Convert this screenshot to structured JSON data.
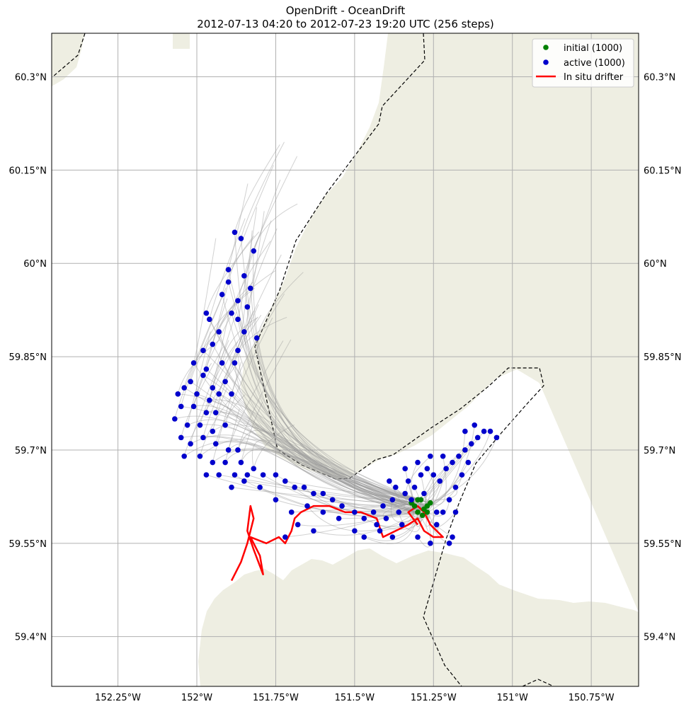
{
  "chart_data": {
    "type": "scatter",
    "title": "OpenDrift - OceanDrift",
    "subtitle": "2012-07-13 04:20 to 2012-07-23 19:20 UTC (256 steps)",
    "xlabel": "",
    "ylabel": "",
    "xlim": [
      -152.46,
      -150.6
    ],
    "ylim": [
      59.32,
      60.37
    ],
    "x_ticks": [
      -152.25,
      -152.0,
      -151.75,
      -151.5,
      -151.25,
      -151.0,
      -150.75
    ],
    "x_tick_labels": [
      "152.25°W",
      "152°W",
      "151.75°W",
      "151.5°W",
      "151.25°W",
      "151°W",
      "150.75°W"
    ],
    "y_ticks": [
      59.4,
      59.55,
      59.7,
      59.85,
      60.0,
      60.15,
      60.3
    ],
    "y_tick_labels": [
      "59.4°N",
      "59.55°N",
      "59.7°N",
      "59.85°N",
      "60°N",
      "60.15°N",
      "60.3°N"
    ],
    "grid": true,
    "legend_position": "top-right",
    "legend": [
      {
        "label": "initial (1000)",
        "color": "#008000",
        "marker": "dot"
      },
      {
        "label": "active (1000)",
        "color": "#0000cc",
        "marker": "dot"
      },
      {
        "label": "In situ drifter",
        "color": "#ff0000",
        "marker": "line"
      }
    ],
    "colors": {
      "land": "#eeeee2",
      "trajectory": "#9a9a9a",
      "initial": "#008000",
      "active": "#0000cc",
      "drifter": "#ff0000",
      "grid": "#b0b0b0"
    },
    "series": [
      {
        "name": "initial (1000)",
        "points": [
          [
            -151.31,
            59.61
          ],
          [
            -151.29,
            59.62
          ],
          [
            -151.27,
            59.61
          ],
          [
            -151.3,
            59.6
          ],
          [
            -151.28,
            59.605
          ],
          [
            -151.26,
            59.615
          ],
          [
            -151.32,
            59.615
          ],
          [
            -151.285,
            59.595
          ],
          [
            -151.3,
            59.62
          ],
          [
            -151.27,
            59.6
          ]
        ]
      },
      {
        "name": "active (1000)",
        "points": [
          [
            -151.88,
            60.05
          ],
          [
            -151.86,
            60.04
          ],
          [
            -151.82,
            60.02
          ],
          [
            -151.9,
            59.99
          ],
          [
            -151.85,
            59.98
          ],
          [
            -151.83,
            59.96
          ],
          [
            -151.9,
            59.97
          ],
          [
            -151.92,
            59.95
          ],
          [
            -151.87,
            59.94
          ],
          [
            -151.84,
            59.93
          ],
          [
            -151.97,
            59.92
          ],
          [
            -151.96,
            59.91
          ],
          [
            -151.89,
            59.92
          ],
          [
            -151.87,
            59.91
          ],
          [
            -151.93,
            59.89
          ],
          [
            -151.85,
            59.89
          ],
          [
            -151.81,
            59.88
          ],
          [
            -151.95,
            59.87
          ],
          [
            -151.98,
            59.86
          ],
          [
            -151.87,
            59.86
          ],
          [
            -152.01,
            59.84
          ],
          [
            -151.97,
            59.83
          ],
          [
            -151.92,
            59.84
          ],
          [
            -151.88,
            59.84
          ],
          [
            -152.02,
            59.81
          ],
          [
            -151.98,
            59.82
          ],
          [
            -151.95,
            59.8
          ],
          [
            -151.91,
            59.81
          ],
          [
            -152.06,
            59.79
          ],
          [
            -152.04,
            59.8
          ],
          [
            -152.0,
            59.79
          ],
          [
            -151.96,
            59.78
          ],
          [
            -151.93,
            59.79
          ],
          [
            -151.89,
            59.79
          ],
          [
            -152.05,
            59.77
          ],
          [
            -152.01,
            59.77
          ],
          [
            -151.97,
            59.76
          ],
          [
            -151.94,
            59.76
          ],
          [
            -152.07,
            59.75
          ],
          [
            -152.03,
            59.74
          ],
          [
            -151.99,
            59.74
          ],
          [
            -151.95,
            59.73
          ],
          [
            -151.91,
            59.74
          ],
          [
            -152.05,
            59.72
          ],
          [
            -152.02,
            59.71
          ],
          [
            -151.98,
            59.72
          ],
          [
            -151.94,
            59.71
          ],
          [
            -151.9,
            59.7
          ],
          [
            -151.87,
            59.7
          ],
          [
            -152.04,
            59.69
          ],
          [
            -151.99,
            59.69
          ],
          [
            -151.95,
            59.68
          ],
          [
            -151.91,
            59.68
          ],
          [
            -151.86,
            59.68
          ],
          [
            -151.82,
            59.67
          ],
          [
            -151.97,
            59.66
          ],
          [
            -151.93,
            59.66
          ],
          [
            -151.88,
            59.66
          ],
          [
            -151.84,
            59.66
          ],
          [
            -151.79,
            59.66
          ],
          [
            -151.75,
            59.66
          ],
          [
            -151.72,
            59.65
          ],
          [
            -151.69,
            59.64
          ],
          [
            -151.66,
            59.64
          ],
          [
            -151.63,
            59.63
          ],
          [
            -151.6,
            59.63
          ],
          [
            -151.57,
            59.62
          ],
          [
            -151.54,
            59.61
          ],
          [
            -151.5,
            59.6
          ],
          [
            -151.47,
            59.59
          ],
          [
            -151.44,
            59.6
          ],
          [
            -151.41,
            59.61
          ],
          [
            -151.43,
            59.58
          ],
          [
            -151.47,
            59.56
          ],
          [
            -151.5,
            59.57
          ],
          [
            -151.55,
            59.59
          ],
          [
            -151.6,
            59.6
          ],
          [
            -151.65,
            59.61
          ],
          [
            -151.7,
            59.6
          ],
          [
            -151.75,
            59.62
          ],
          [
            -151.8,
            59.64
          ],
          [
            -151.85,
            59.65
          ],
          [
            -151.89,
            59.64
          ],
          [
            -151.63,
            59.57
          ],
          [
            -151.68,
            59.58
          ],
          [
            -151.72,
            59.56
          ],
          [
            -151.4,
            59.59
          ],
          [
            -151.38,
            59.62
          ],
          [
            -151.36,
            59.6
          ],
          [
            -151.34,
            59.63
          ],
          [
            -151.37,
            59.64
          ],
          [
            -151.33,
            59.65
          ],
          [
            -151.31,
            59.64
          ],
          [
            -151.29,
            59.66
          ],
          [
            -151.27,
            59.67
          ],
          [
            -151.25,
            59.66
          ],
          [
            -151.23,
            59.65
          ],
          [
            -151.21,
            59.67
          ],
          [
            -151.19,
            59.68
          ],
          [
            -151.17,
            59.69
          ],
          [
            -151.15,
            59.7
          ],
          [
            -151.13,
            59.71
          ],
          [
            -151.11,
            59.72
          ],
          [
            -151.09,
            59.73
          ],
          [
            -151.07,
            59.73
          ],
          [
            -151.05,
            59.72
          ],
          [
            -151.14,
            59.68
          ],
          [
            -151.16,
            59.66
          ],
          [
            -151.18,
            59.64
          ],
          [
            -151.2,
            59.62
          ],
          [
            -151.22,
            59.6
          ],
          [
            -151.24,
            59.58
          ],
          [
            -151.18,
            59.6
          ],
          [
            -151.19,
            59.56
          ],
          [
            -151.2,
            59.55
          ],
          [
            -151.24,
            59.6
          ],
          [
            -151.28,
            59.63
          ],
          [
            -151.32,
            59.62
          ],
          [
            -151.35,
            59.58
          ],
          [
            -151.3,
            59.56
          ],
          [
            -151.26,
            59.55
          ],
          [
            -151.38,
            59.56
          ],
          [
            -151.42,
            59.57
          ],
          [
            -151.15,
            59.73
          ],
          [
            -151.12,
            59.74
          ],
          [
            -151.22,
            59.69
          ],
          [
            -151.26,
            59.69
          ],
          [
            -151.3,
            59.68
          ],
          [
            -151.34,
            59.67
          ],
          [
            -151.39,
            59.65
          ]
        ]
      }
    ],
    "drifter": [
      [
        -151.89,
        59.49
      ],
      [
        -151.86,
        59.52
      ],
      [
        -151.84,
        59.55
      ],
      [
        -151.82,
        59.59
      ],
      [
        -151.83,
        59.61
      ],
      [
        -151.84,
        59.57
      ],
      [
        -151.82,
        59.54
      ],
      [
        -151.79,
        59.5
      ],
      [
        -151.8,
        59.53
      ],
      [
        -151.83,
        59.56
      ],
      [
        -151.78,
        59.55
      ],
      [
        -151.74,
        59.56
      ],
      [
        -151.72,
        59.55
      ],
      [
        -151.7,
        59.57
      ],
      [
        -151.69,
        59.59
      ],
      [
        -151.67,
        59.6
      ],
      [
        -151.63,
        59.61
      ],
      [
        -151.58,
        59.61
      ],
      [
        -151.53,
        59.6
      ],
      [
        -151.48,
        59.6
      ],
      [
        -151.43,
        59.59
      ],
      [
        -151.41,
        59.56
      ],
      [
        -151.37,
        59.57
      ],
      [
        -151.33,
        59.58
      ],
      [
        -151.3,
        59.59
      ],
      [
        -151.28,
        59.57
      ],
      [
        -151.25,
        59.56
      ],
      [
        -151.22,
        59.56
      ],
      [
        -151.26,
        59.58
      ],
      [
        -151.28,
        59.6
      ],
      [
        -151.3,
        59.61
      ],
      [
        -151.33,
        59.6
      ],
      [
        -151.3,
        59.58
      ]
    ]
  }
}
